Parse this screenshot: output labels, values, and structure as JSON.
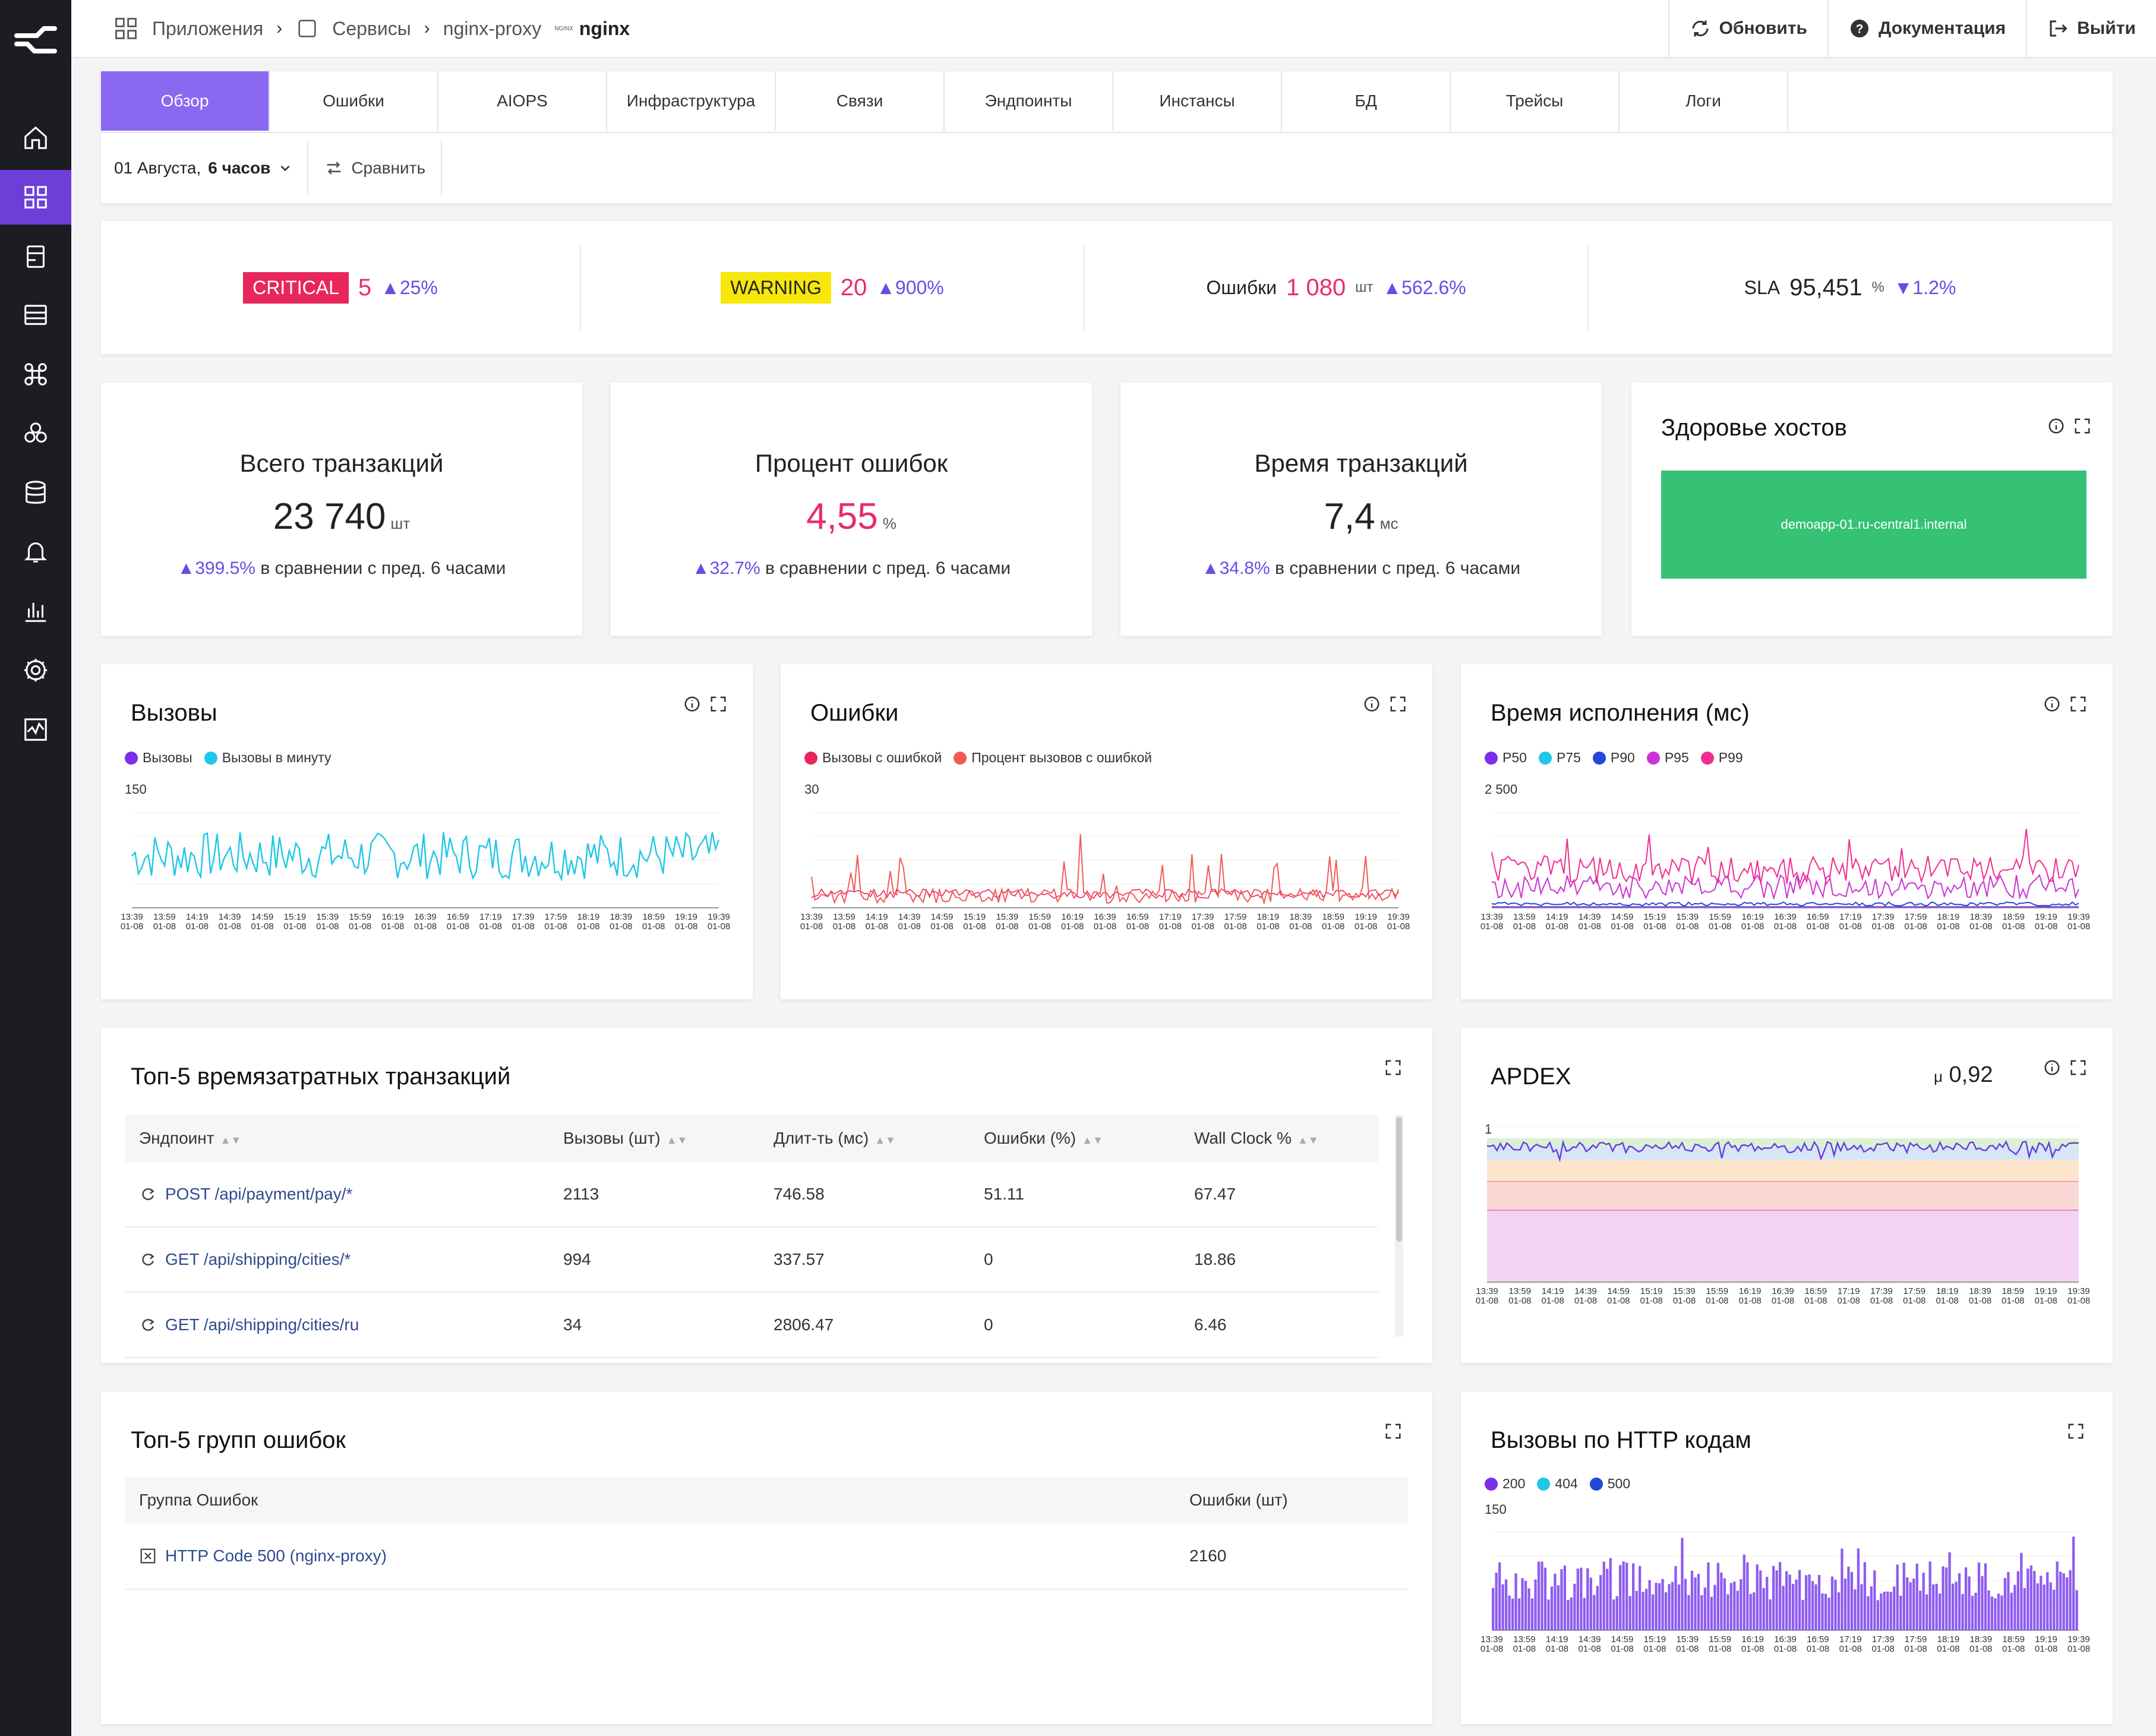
{
  "breadcrumbs": {
    "apps": "Приложения",
    "services": "Сервисы",
    "service": "nginx-proxy",
    "tag": "NGINX",
    "current": "nginx"
  },
  "top_actions": {
    "refresh": "Обновить",
    "docs": "Документация",
    "logout": "Выйти"
  },
  "tabs": [
    "Обзор",
    "Ошибки",
    "AIOPS",
    "Инфраструктура",
    "Связи",
    "Эндпоинты",
    "Инстансы",
    "БД",
    "Трейсы",
    "Логи"
  ],
  "period": {
    "date": "01 Августа,",
    "range": "6 часов",
    "compare": "Сравнить"
  },
  "summary": {
    "critical": {
      "label": "CRITICAL",
      "value": "5",
      "delta": "25%"
    },
    "warning": {
      "label": "WARNING",
      "value": "20",
      "delta": "900%"
    },
    "errors": {
      "label": "Ошибки",
      "value": "1 080",
      "unit": "шт",
      "delta": "562.6%"
    },
    "sla": {
      "label": "SLA",
      "value": "95,451",
      "unit": "%",
      "delta": "1.2%"
    }
  },
  "kpis": [
    {
      "title": "Всего транзакций",
      "value": "23 740",
      "unit": "шт",
      "delta": "399.5%",
      "compare": "в сравнении с пред. 6 часами"
    },
    {
      "title": "Процент ошибок",
      "value": "4,55",
      "unit": "%",
      "delta": "32.7%",
      "compare": "в сравнении с пред. 6 часами"
    },
    {
      "title": "Время транзакций",
      "value": "7,4",
      "unit": "мс",
      "delta": "34.8%",
      "compare": "в сравнении с пред. 6 часами"
    }
  ],
  "host_health": {
    "title": "Здоровье хостов",
    "host": "demoapp-01.ru-central1.internal"
  },
  "x_ticks": [
    "13:39",
    "13:59",
    "14:19",
    "14:39",
    "14:59",
    "15:19",
    "15:39",
    "15:59",
    "16:19",
    "16:39",
    "16:59",
    "17:19",
    "17:39",
    "17:59",
    "18:19",
    "18:39",
    "18:59",
    "19:19",
    "19:39"
  ],
  "x_date": "01-08",
  "chart_data": [
    {
      "type": "line",
      "title": "Вызовы",
      "series": [
        {
          "name": "Вызовы",
          "color": "#7b2fe8"
        },
        {
          "name": "Вызовы в минуту",
          "color": "#1fc7e6"
        }
      ],
      "ymax_label": "150"
    },
    {
      "type": "line",
      "title": "Ошибки",
      "series": [
        {
          "name": "Вызовы с ошибкой",
          "color": "#e8265c"
        },
        {
          "name": "Процент вызовов с ошибкой",
          "color": "#f25a5a"
        }
      ],
      "ymax_label": "30"
    },
    {
      "type": "line",
      "title": "Время исполнения (мс)",
      "series": [
        {
          "name": "P50",
          "color": "#7b2fe8"
        },
        {
          "name": "P75",
          "color": "#1fc7e6"
        },
        {
          "name": "P90",
          "color": "#2447d6"
        },
        {
          "name": "P95",
          "color": "#cc33d6"
        },
        {
          "name": "P99",
          "color": "#ef2e92"
        }
      ],
      "ymax_label": "2 500"
    },
    {
      "type": "line",
      "title": "APDEX",
      "mean_label": "μ",
      "mean": "0,92",
      "ymax_label": "1",
      "series": [
        {
          "name": "APDEX",
          "color": "#6a3be0"
        }
      ]
    },
    {
      "type": "bar",
      "title": "Вызовы по HTTP кодам",
      "series": [
        {
          "name": "200",
          "color": "#7b2fe8"
        },
        {
          "name": "404",
          "color": "#1fc7e6"
        },
        {
          "name": "500",
          "color": "#2447d6"
        }
      ],
      "ymax_label": "150"
    }
  ],
  "top_tx": {
    "title": "Топ-5 времязатратных транзакций",
    "columns": [
      "Эндпоинт",
      "Вызовы (шт)",
      "Длит-ть (мс)",
      "Ошибки (%)",
      "Wall Clock %"
    ],
    "rows": [
      [
        "POST /api/payment/pay/*",
        "2113",
        "746.58",
        "51.11",
        "67.47"
      ],
      [
        "GET /api/shipping/cities/*",
        "994",
        "337.57",
        "0",
        "18.86"
      ],
      [
        "GET /api/shipping/cities/ru",
        "34",
        "2806.47",
        "0",
        "6.46"
      ]
    ]
  },
  "top_err": {
    "title": "Топ-5 групп ошибок",
    "columns": [
      "Группа Ошибок",
      "Ошибки (шт)"
    ],
    "rows": [
      [
        "HTTP Code 500 (nginx-proxy)",
        "2160"
      ]
    ]
  },
  "colors": {
    "accent": "#6d3fd9",
    "tab_active": "#8b68f2",
    "critical": "#e8265c",
    "warning": "#f7e70a",
    "pink": "#ea2b6e",
    "up": "#6a4ce4",
    "host_ok": "#35c275"
  }
}
